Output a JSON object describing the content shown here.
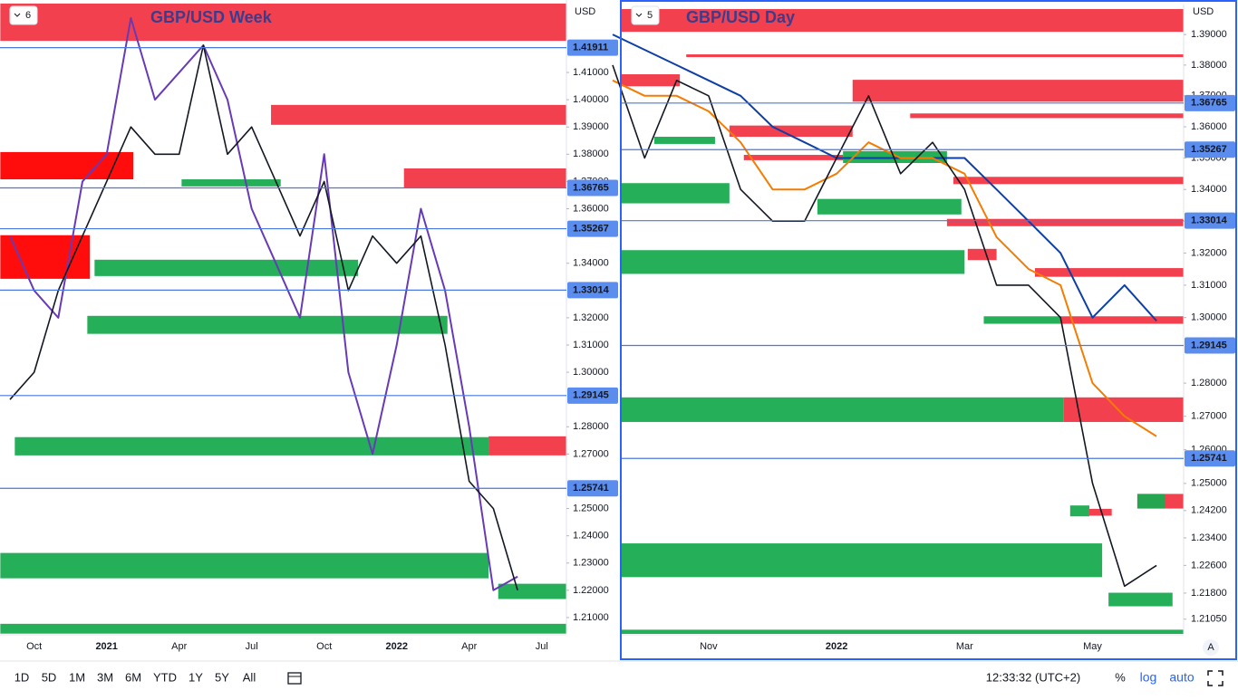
{
  "chart_data": [
    {
      "type": "line",
      "title": "GBP/USD Week",
      "pane": "6",
      "currency": "USD",
      "categories": [
        null,
        "Oct",
        null,
        null,
        "2021",
        null,
        null,
        "Apr",
        null,
        null,
        "Jul",
        null,
        null,
        "Oct",
        null,
        null,
        "2022",
        null,
        null,
        "Apr",
        null,
        null,
        "Jul"
      ],
      "series": [
        {
          "color": "#673ab7",
          "values": [
            1.35,
            1.33,
            1.32,
            1.37,
            1.38,
            1.43,
            1.4,
            1.41,
            1.42,
            1.4,
            1.36,
            1.34,
            1.32,
            1.38,
            1.3,
            1.27,
            1.31,
            1.36,
            1.33,
            1.28,
            1.22,
            1.225,
            null
          ]
        },
        {
          "color": "#131722",
          "values": [
            1.29,
            1.3,
            1.33,
            1.35,
            1.37,
            1.39,
            1.38,
            1.38,
            1.42,
            1.38,
            1.39,
            1.37,
            1.35,
            1.37,
            1.33,
            1.35,
            1.34,
            1.35,
            1.31,
            1.26,
            1.25,
            1.22,
            null
          ]
        }
      ],
      "ylim": [
        1.204,
        1.4366
      ],
      "log_scale": false,
      "yticks": [
        {
          "value": 1.21,
          "label": "1.21000"
        },
        {
          "value": 1.22,
          "label": "1.22000"
        },
        {
          "value": 1.23,
          "label": "1.23000"
        },
        {
          "value": 1.24,
          "label": "1.24000"
        },
        {
          "value": 1.25,
          "label": "1.25000"
        },
        {
          "value": 1.27,
          "label": "1.27000"
        },
        {
          "value": 1.28,
          "label": "1.28000"
        },
        {
          "value": 1.3,
          "label": "1.30000"
        },
        {
          "value": 1.31,
          "label": "1.31000"
        },
        {
          "value": 1.32,
          "label": "1.32000"
        },
        {
          "value": 1.34,
          "label": "1.34000"
        },
        {
          "value": 1.36,
          "label": "1.36000"
        },
        {
          "value": 1.37,
          "label": "1.37000"
        },
        {
          "value": 1.38,
          "label": "1.38000"
        },
        {
          "value": 1.39,
          "label": "1.39000"
        },
        {
          "value": 1.4,
          "label": "1.40000"
        },
        {
          "value": 1.41,
          "label": "1.41000"
        }
      ],
      "levels": [
        1.41911,
        1.36765,
        1.35267,
        1.33014,
        1.29145,
        1.25741
      ],
      "zones": [
        {
          "color": "#f23645",
          "from": 1.4216,
          "to": 1.4353,
          "start": -0.4
        },
        {
          "color": "#f23645",
          "from": 1.3908,
          "to": 1.3981,
          "start": 10.8
        },
        {
          "color": "#ff0000",
          "from": 1.3708,
          "to": 1.3808,
          "start": -0.4,
          "end": 5.1
        },
        {
          "color": "#f23645",
          "from": 1.3675,
          "to": 1.3748,
          "start": 16.3
        },
        {
          "color": "#ff0000",
          "from": 1.3343,
          "to": 1.3503,
          "start": -0.4,
          "end": 3.3
        },
        {
          "color": "#1aab50",
          "from": 1.3353,
          "to": 1.3413,
          "start": 3.5,
          "end": 14.4
        },
        {
          "color": "#1aab50",
          "from": 1.3141,
          "to": 1.3207,
          "start": 3.2,
          "end": 18.1
        },
        {
          "color": "#1aab50",
          "from": 1.2695,
          "to": 1.2762,
          "start": 0.2,
          "end": 19.8
        },
        {
          "color": "#f23645",
          "from": 1.2695,
          "to": 1.2765,
          "start": 19.8
        },
        {
          "color": "#1aab50",
          "from": 1.2244,
          "to": 1.2337,
          "start": -0.4,
          "end": 19.8
        },
        {
          "color": "#1aab50",
          "from": 1.2168,
          "to": 1.2224,
          "start": 20.2
        },
        {
          "color": "#1aab50",
          "from": 1.2041,
          "to": 1.2077,
          "start": -0.4
        },
        {
          "color": "#1aab50",
          "from": 1.3682,
          "to": 1.3708,
          "start": 7.1,
          "end": 11.2
        }
      ]
    },
    {
      "type": "line",
      "title": "GBP/USD Day",
      "pane": "5",
      "currency": "USD",
      "corner_label": "A",
      "categories": [
        null,
        null,
        null,
        "Nov",
        null,
        null,
        null,
        "2022",
        null,
        null,
        null,
        "Mar",
        null,
        null,
        null,
        "May",
        null,
        null
      ],
      "series": [
        {
          "color": "#0d3fa6",
          "values": [
            1.39,
            1.385,
            1.38,
            1.375,
            1.37,
            1.36,
            1.355,
            1.35,
            1.35,
            1.35,
            1.35,
            1.35,
            1.34,
            1.33,
            1.32,
            1.3,
            1.31,
            1.299
          ]
        },
        {
          "color": "#f57c00",
          "values": [
            1.375,
            1.37,
            1.37,
            1.365,
            1.355,
            1.34,
            1.34,
            1.345,
            1.355,
            1.35,
            1.35,
            1.345,
            1.325,
            1.315,
            1.31,
            1.28,
            1.27,
            1.264
          ]
        },
        {
          "color": "#131722",
          "values": [
            1.38,
            1.35,
            1.375,
            1.37,
            1.34,
            1.33,
            1.33,
            1.35,
            1.37,
            1.345,
            1.355,
            1.34,
            1.31,
            1.31,
            1.3,
            1.25,
            1.22,
            1.226
          ]
        }
      ],
      "ylim": [
        1.2063,
        1.3999
      ],
      "log_scale": true,
      "yticks": [
        {
          "value": 1.2105,
          "label": "1.21050"
        },
        {
          "value": 1.218,
          "label": "1.21800"
        },
        {
          "value": 1.226,
          "label": "1.22600"
        },
        {
          "value": 1.234,
          "label": "1.23400"
        },
        {
          "value": 1.242,
          "label": "1.24200"
        },
        {
          "value": 1.25,
          "label": "1.25000"
        },
        {
          "value": 1.26,
          "label": "1.26000"
        },
        {
          "value": 1.27,
          "label": "1.27000"
        },
        {
          "value": 1.28,
          "label": "1.28000"
        },
        {
          "value": 1.3,
          "label": "1.30000"
        },
        {
          "value": 1.31,
          "label": "1.31000"
        },
        {
          "value": 1.32,
          "label": "1.32000"
        },
        {
          "value": 1.33,
          "label": "1.33000"
        },
        {
          "value": 1.34,
          "label": "1.34000"
        },
        {
          "value": 1.35,
          "label": "1.35000"
        },
        {
          "value": 1.36,
          "label": "1.36000"
        },
        {
          "value": 1.37,
          "label": "1.37000"
        },
        {
          "value": 1.38,
          "label": "1.38000"
        },
        {
          "value": 1.39,
          "label": "1.39000"
        }
      ],
      "levels": [
        1.36765,
        1.35267,
        1.33014,
        1.29145,
        1.25741
      ],
      "zones": [
        {
          "color": "#f23645",
          "from": 1.3909,
          "to": 1.3984,
          "start": 0.28
        },
        {
          "color": "#f23645",
          "from": 1.3826,
          "to": 1.3835,
          "start": 2.3
        },
        {
          "color": "#f23645",
          "from": 1.3731,
          "to": 1.377,
          "start": 0.28,
          "end": 2.1
        },
        {
          "color": "#f23645",
          "from": 1.3681,
          "to": 1.3752,
          "start": 7.5
        },
        {
          "color": "#f23645",
          "from": 1.3628,
          "to": 1.3643,
          "start": 9.3
        },
        {
          "color": "#f23645",
          "from": 1.3568,
          "to": 1.3604,
          "start": 3.65,
          "end": 7.5
        },
        {
          "color": "#1aab50",
          "from": 1.3545,
          "to": 1.3568,
          "start": 1.3,
          "end": 3.2
        },
        {
          "color": "#f23645",
          "from": 1.3493,
          "to": 1.351,
          "start": 4.1,
          "end": 7.2
        },
        {
          "color": "#1aab50",
          "from": 1.3484,
          "to": 1.3522,
          "start": 7.2,
          "end": 10.45
        },
        {
          "color": "#f23645",
          "from": 1.3417,
          "to": 1.344,
          "start": 10.65
        },
        {
          "color": "#1aab50",
          "from": 1.3356,
          "to": 1.342,
          "start": 0.28,
          "end": 3.65
        },
        {
          "color": "#1aab50",
          "from": 1.3321,
          "to": 1.337,
          "start": 6.4,
          "end": 10.9
        },
        {
          "color": "#f23645",
          "from": 1.3284,
          "to": 1.3307,
          "start": 10.45
        },
        {
          "color": "#1aab50",
          "from": 1.3135,
          "to": 1.3209,
          "start": 0.28,
          "end": 11.0
        },
        {
          "color": "#f23645",
          "from": 1.3178,
          "to": 1.3213,
          "start": 11.1,
          "end": 12.0
        },
        {
          "color": "#f23645",
          "from": 1.3126,
          "to": 1.3153,
          "start": 13.2
        },
        {
          "color": "#1aab50",
          "from": 1.2981,
          "to": 1.3004,
          "start": 11.6,
          "end": 14.0
        },
        {
          "color": "#f23645",
          "from": 1.2981,
          "to": 1.3004,
          "start": 14.0
        },
        {
          "color": "#1aab50",
          "from": 1.2683,
          "to": 1.2757,
          "start": 0.28,
          "end": 14.1
        },
        {
          "color": "#f23645",
          "from": 1.2683,
          "to": 1.2757,
          "start": 14.1
        },
        {
          "color": "#f23645",
          "from": 1.2426,
          "to": 1.2469,
          "start": 16.4
        },
        {
          "color": "#1aab50",
          "from": 1.2426,
          "to": 1.2469,
          "start": 16.4,
          "end": 17.25
        },
        {
          "color": "#1aab50",
          "from": 1.2403,
          "to": 1.2435,
          "start": 14.3,
          "end": 14.9
        },
        {
          "color": "#f23645",
          "from": 1.2405,
          "to": 1.2425,
          "start": 14.9,
          "end": 15.6
        },
        {
          "color": "#1aab50",
          "from": 1.2226,
          "to": 1.2324,
          "start": 0.28,
          "end": 15.3
        },
        {
          "color": "#1aab50",
          "from": 1.2142,
          "to": 1.2181,
          "start": 15.5,
          "end": 17.5
        },
        {
          "color": "#1aab50",
          "from": 1.2063,
          "to": 1.2075,
          "start": 0.28
        }
      ]
    }
  ],
  "toolbar": {
    "ranges": [
      "1D",
      "5D",
      "1M",
      "3M",
      "6M",
      "YTD",
      "1Y",
      "5Y",
      "All"
    ],
    "clock": "12:33:32 (UTC+2)",
    "scale_options": [
      "%",
      "log",
      "auto"
    ]
  }
}
